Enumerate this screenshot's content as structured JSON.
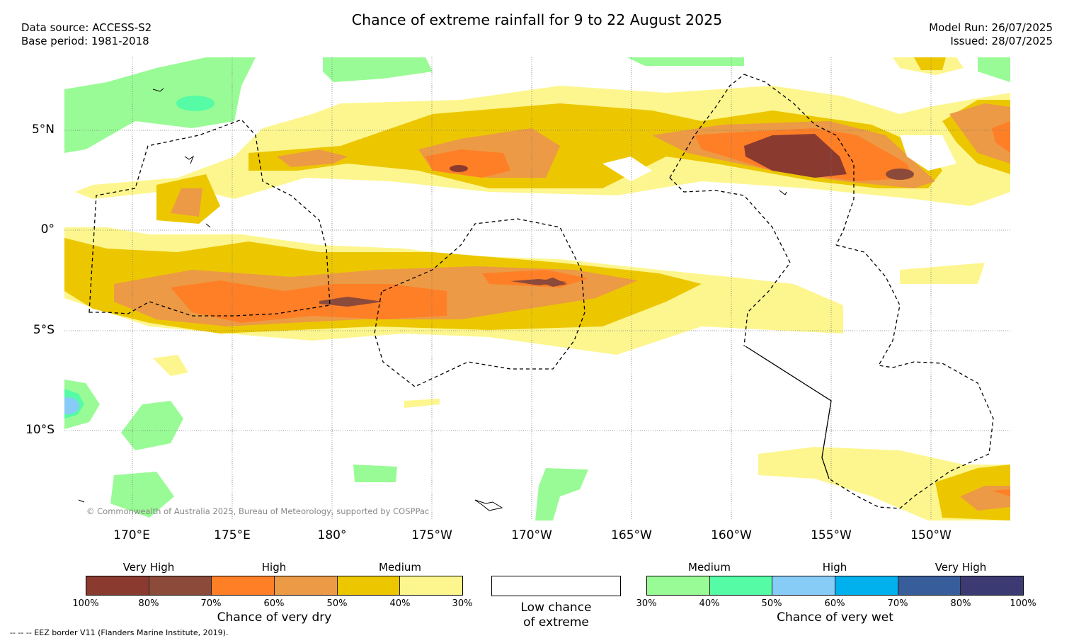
{
  "header": {
    "title": "Chance of extreme rainfall for 9 to 22 August 2025",
    "data_source": "Data source: ACCESS-S2",
    "base_period": "Base period: 1981-2018",
    "model_run": "Model Run: 26/07/2025",
    "issued": "Issued: 28/07/2025"
  },
  "map": {
    "lon_labels": [
      "170°E",
      "175°E",
      "180°",
      "175°W",
      "170°W",
      "165°W",
      "160°W",
      "155°W",
      "150°W"
    ],
    "lat_labels": [
      "5°N",
      "0°",
      "5°S",
      "10°S"
    ],
    "copyright": "© Commonwealth of Australia 2025, Bureau of Meteorology, supported by COSPPac"
  },
  "legend": {
    "dry": {
      "categories": [
        "Very High",
        "High",
        "Medium"
      ],
      "ticks": [
        "100%",
        "80%",
        "70%",
        "60%",
        "50%",
        "40%",
        "30%"
      ],
      "colors": [
        "#8b3a30",
        "#8b4a3a",
        "#ff7f27",
        "#ec9a45",
        "#ecc700",
        "#fdf68e"
      ],
      "title": "Chance of very dry"
    },
    "low": {
      "title_line1": "Low chance",
      "title_line2": "of extreme"
    },
    "wet": {
      "categories": [
        "Medium",
        "High",
        "Very High"
      ],
      "ticks": [
        "30%",
        "40%",
        "50%",
        "60%",
        "70%",
        "80%",
        "100%"
      ],
      "colors": [
        "#99fb95",
        "#55fba5",
        "#87cbf7",
        "#00b1ee",
        "#375e9b",
        "#3b3a73"
      ],
      "title": "Chance of very wet"
    }
  },
  "footnote": "-- -- -- EEZ border V11 (Flanders Marine Institute, 2019)."
}
